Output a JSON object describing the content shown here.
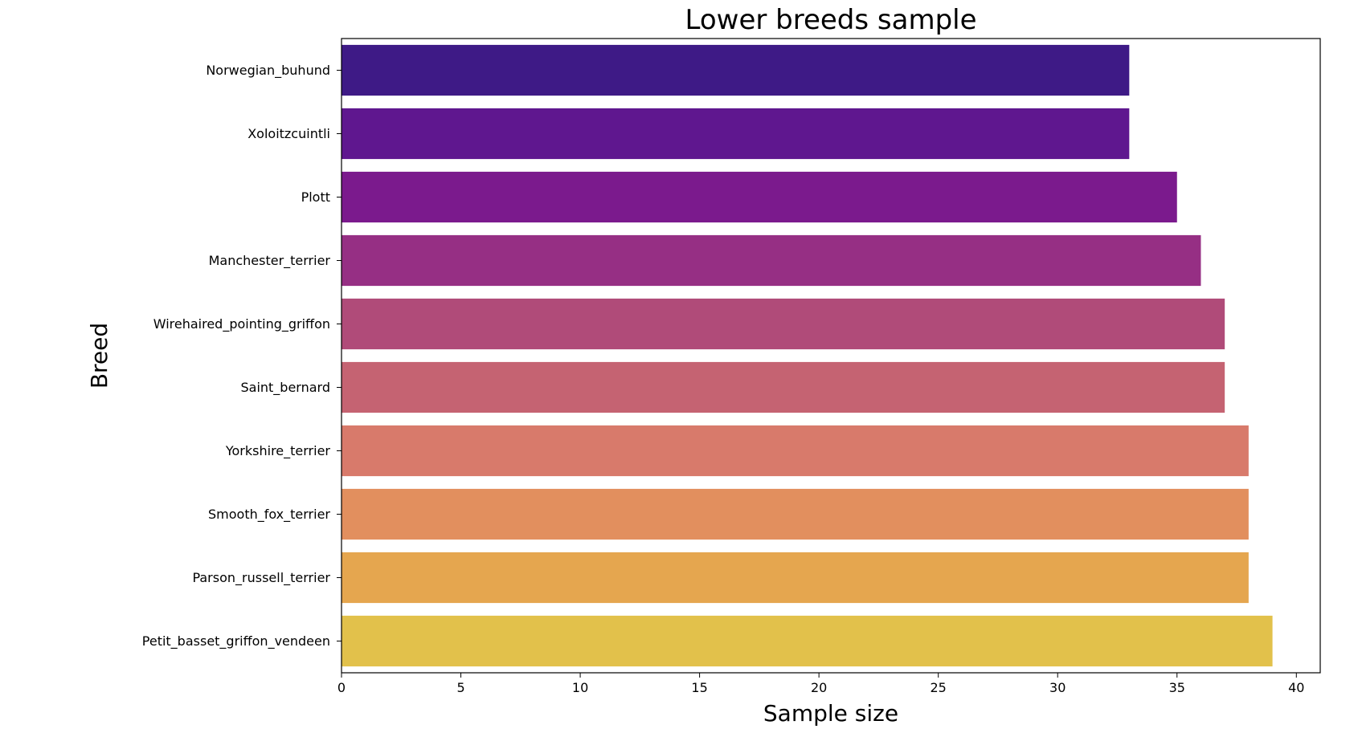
{
  "chart_data": {
    "type": "bar",
    "orientation": "horizontal",
    "title": "Lower breeds sample",
    "xlabel": "Sample size",
    "ylabel": "Breed",
    "xlim": [
      0,
      41
    ],
    "xticks": [
      0,
      5,
      10,
      15,
      20,
      25,
      30,
      35,
      40
    ],
    "grid": false,
    "legend": false,
    "categories": [
      "Norwegian_buhund",
      "Xoloitzcuintli",
      "Plott",
      "Manchester_terrier",
      "Wirehaired_pointing_griffon",
      "Saint_bernard",
      "Yorkshire_terrier",
      "Smooth_fox_terrier",
      "Parson_russell_terrier",
      "Petit_basset_griffon_vendeen"
    ],
    "values": [
      33,
      33,
      35,
      36,
      37,
      37,
      38,
      38,
      38,
      39
    ],
    "colors": [
      "#3e1a86",
      "#5f178f",
      "#7b1a8d",
      "#962f84",
      "#b04b79",
      "#c56372",
      "#d87a6b",
      "#e28f5e",
      "#e5a64f",
      "#e2c14b"
    ]
  }
}
